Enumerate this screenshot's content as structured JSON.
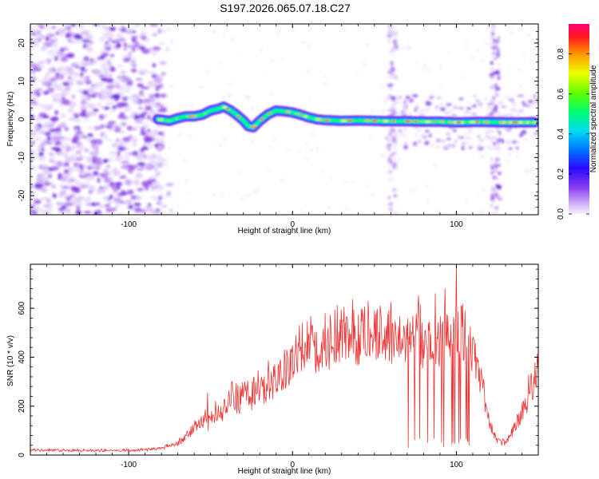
{
  "title": "S197.2026.065.07.18.C27",
  "colors": {
    "snr_line": "#ee3333",
    "background": "#ffffff",
    "axis": "#000000"
  },
  "chart_data": [
    {
      "id": "spectrogram",
      "type": "heatmap",
      "xlabel": "Height of straight line (km)",
      "ylabel": "Frequency (Hz)",
      "xlim": [
        -160,
        150
      ],
      "ylim": [
        -25,
        25
      ],
      "xticks": [
        -100,
        0,
        100
      ],
      "xtick_labels": [
        "-100",
        "0",
        "100"
      ],
      "yticks": [
        -20,
        -10,
        0,
        10,
        20
      ],
      "ytick_labels": [
        "-20",
        "-10",
        "0",
        "10",
        "20"
      ],
      "noise_region_km": [
        -160,
        -78
      ],
      "vertical_stripes_km": [
        61,
        124
      ],
      "ridge": {
        "description": "main frequency trace vs height",
        "x": [
          -82,
          -75,
          -70,
          -65,
          -60,
          -55,
          -50,
          -45,
          -42,
          -38,
          -35,
          -30,
          -27,
          -24,
          -20,
          -15,
          -10,
          -5,
          0,
          5,
          10,
          15,
          20,
          30,
          40,
          50,
          60,
          70,
          80,
          90,
          100,
          110,
          120,
          130,
          140,
          148
        ],
        "y": [
          0.0,
          -0.4,
          0.3,
          0.8,
          0.8,
          1.2,
          2.3,
          2.8,
          3.3,
          2.4,
          1.5,
          -0.3,
          -1.8,
          -2.1,
          -0.4,
          1.3,
          2.3,
          2.1,
          1.8,
          1.2,
          0.5,
          0.0,
          -0.2,
          -0.4,
          -0.3,
          -0.4,
          -0.5,
          -0.5,
          -0.6,
          -0.6,
          -0.8,
          -0.7,
          -0.7,
          -0.8,
          -0.8,
          -0.8
        ]
      },
      "colorbar": {
        "label": "Normalized spectral amplitude",
        "min": 0.0,
        "max": 0.95,
        "ticks": [
          0.0,
          0.2,
          0.4,
          0.6,
          0.8
        ],
        "tick_labels": [
          "0.0",
          "0.2",
          "0.4",
          "0.6",
          "0.8"
        ]
      }
    },
    {
      "id": "snr",
      "type": "line",
      "xlabel": "Height of straight line (km)",
      "ylabel": "SNR (10 * v/v)",
      "xlim": [
        -160,
        150
      ],
      "ylim": [
        0,
        780
      ],
      "xticks": [
        -100,
        0,
        100
      ],
      "xtick_labels": [
        "-100",
        "0",
        "100"
      ],
      "yticks": [
        0,
        200,
        400,
        600
      ],
      "ytick_labels": [
        "0",
        "200",
        "400",
        "600"
      ],
      "series": [
        {
          "name": "SNR",
          "envelope_x": [
            -160,
            -130,
            -100,
            -90,
            -80,
            -72,
            -65,
            -60,
            -55,
            -50,
            -45,
            -40,
            -35,
            -30,
            -25,
            -20,
            -15,
            -10,
            -5,
            0,
            5,
            10,
            15,
            20,
            25,
            30,
            35,
            40,
            45,
            50,
            55,
            60,
            65,
            70,
            75,
            80,
            85,
            90,
            95,
            100,
            105,
            110,
            115,
            120,
            125,
            130,
            135,
            140,
            145,
            150
          ],
          "envelope_y": [
            20,
            20,
            20,
            22,
            28,
            45,
            75,
            120,
            140,
            135,
            170,
            200,
            215,
            240,
            250,
            265,
            290,
            320,
            355,
            380,
            395,
            425,
            435,
            445,
            455,
            465,
            470,
            480,
            490,
            500,
            500,
            495,
            500,
            485,
            495,
            470,
            490,
            480,
            485,
            510,
            475,
            420,
            320,
            130,
            60,
            55,
            110,
            180,
            260,
            360
          ],
          "spikes_x": [
            -52,
            -47,
            -37,
            -24,
            -11,
            -5,
            4,
            12,
            20,
            33,
            46,
            60,
            78,
            87,
            93,
            100,
            103
          ],
          "spikes_y": [
            255,
            220,
            300,
            315,
            370,
            430,
            530,
            530,
            580,
            565,
            630,
            625,
            615,
            660,
            680,
            778,
            610
          ],
          "dropout_region_km": [
            70,
            108
          ]
        }
      ]
    }
  ]
}
